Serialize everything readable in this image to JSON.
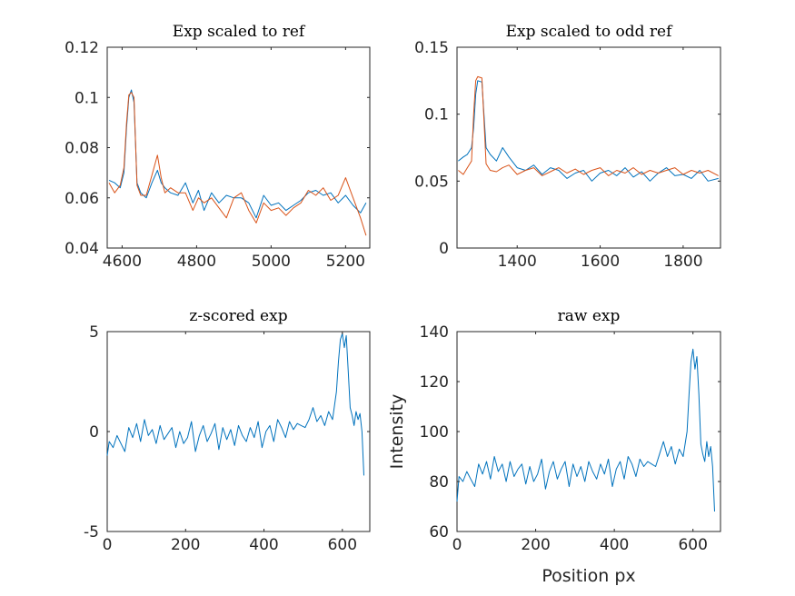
{
  "colors": {
    "series1": "#0072BD",
    "series2": "#D95319",
    "axes": "#262626"
  },
  "chart_data": [
    {
      "type": "line",
      "title": "Exp scaled to ref",
      "xlabel": "",
      "ylabel": "",
      "xlim": [
        4560,
        5265
      ],
      "ylim": [
        0.04,
        0.12
      ],
      "xticks": [
        4600,
        4800,
        5000,
        5200
      ],
      "xtick_labels": [
        "4600",
        "4800",
        "5000",
        "5200"
      ],
      "yticks": [
        0.04,
        0.06,
        0.08,
        0.1,
        0.12
      ],
      "ytick_labels": [
        "0.04",
        "0.06",
        "0.08",
        "0.1",
        "0.12"
      ],
      "grid": false,
      "series": [
        {
          "color": "#0072BD",
          "x": [
            4565,
            4580,
            4595,
            4605,
            4612,
            4618,
            4625,
            4632,
            4640,
            4650,
            4665,
            4680,
            4695,
            4705,
            4715,
            4730,
            4750,
            4770,
            4790,
            4805,
            4820,
            4840,
            4860,
            4880,
            4900,
            4920,
            4940,
            4960,
            4980,
            5000,
            5020,
            5040,
            5060,
            5080,
            5100,
            5120,
            5140,
            5160,
            5180,
            5200,
            5220,
            5240,
            5255
          ],
          "y": [
            0.067,
            0.066,
            0.064,
            0.07,
            0.088,
            0.1,
            0.103,
            0.098,
            0.066,
            0.062,
            0.06,
            0.066,
            0.071,
            0.066,
            0.064,
            0.062,
            0.061,
            0.066,
            0.058,
            0.063,
            0.055,
            0.062,
            0.058,
            0.061,
            0.06,
            0.06,
            0.058,
            0.052,
            0.061,
            0.057,
            0.058,
            0.055,
            0.057,
            0.059,
            0.062,
            0.063,
            0.061,
            0.062,
            0.058,
            0.061,
            0.057,
            0.054,
            0.058
          ]
        },
        {
          "color": "#D95319",
          "x": [
            4565,
            4580,
            4595,
            4605,
            4612,
            4618,
            4625,
            4632,
            4640,
            4650,
            4665,
            4680,
            4695,
            4705,
            4715,
            4730,
            4750,
            4770,
            4790,
            4805,
            4820,
            4840,
            4860,
            4880,
            4900,
            4920,
            4940,
            4960,
            4980,
            5000,
            5020,
            5040,
            5060,
            5080,
            5100,
            5120,
            5140,
            5160,
            5180,
            5200,
            5220,
            5240,
            5255
          ],
          "y": [
            0.066,
            0.062,
            0.065,
            0.072,
            0.09,
            0.101,
            0.102,
            0.1,
            0.065,
            0.061,
            0.061,
            0.069,
            0.077,
            0.068,
            0.062,
            0.064,
            0.062,
            0.062,
            0.055,
            0.06,
            0.058,
            0.06,
            0.056,
            0.052,
            0.06,
            0.062,
            0.055,
            0.05,
            0.058,
            0.055,
            0.056,
            0.053,
            0.056,
            0.058,
            0.063,
            0.061,
            0.064,
            0.059,
            0.061,
            0.068,
            0.06,
            0.052,
            0.045
          ]
        }
      ]
    },
    {
      "type": "line",
      "title": "Exp scaled to odd ref",
      "xlabel": "",
      "ylabel": "",
      "xlim": [
        1255,
        1890
      ],
      "ylim": [
        0,
        0.15
      ],
      "xticks": [
        1400,
        1600,
        1800
      ],
      "xtick_labels": [
        "1400",
        "1600",
        "1800"
      ],
      "yticks": [
        0,
        0.05,
        0.1,
        0.15
      ],
      "ytick_labels": [
        "0",
        "0.05",
        "0.1",
        "0.15"
      ],
      "grid": false,
      "series": [
        {
          "color": "#0072BD",
          "x": [
            1258,
            1270,
            1280,
            1290,
            1295,
            1300,
            1305,
            1315,
            1325,
            1335,
            1350,
            1365,
            1380,
            1400,
            1420,
            1440,
            1460,
            1480,
            1500,
            1520,
            1540,
            1560,
            1580,
            1600,
            1620,
            1640,
            1660,
            1680,
            1700,
            1720,
            1740,
            1760,
            1780,
            1800,
            1820,
            1840,
            1860,
            1885
          ],
          "y": [
            0.065,
            0.068,
            0.07,
            0.075,
            0.09,
            0.115,
            0.125,
            0.124,
            0.075,
            0.07,
            0.065,
            0.075,
            0.068,
            0.06,
            0.058,
            0.062,
            0.055,
            0.06,
            0.058,
            0.052,
            0.056,
            0.058,
            0.05,
            0.056,
            0.058,
            0.054,
            0.06,
            0.053,
            0.057,
            0.05,
            0.056,
            0.06,
            0.054,
            0.055,
            0.052,
            0.058,
            0.05,
            0.052
          ]
        },
        {
          "color": "#D95319",
          "x": [
            1258,
            1270,
            1280,
            1290,
            1295,
            1300,
            1305,
            1315,
            1325,
            1335,
            1350,
            1365,
            1380,
            1400,
            1420,
            1440,
            1460,
            1480,
            1500,
            1520,
            1540,
            1560,
            1580,
            1600,
            1620,
            1640,
            1660,
            1680,
            1700,
            1720,
            1740,
            1760,
            1780,
            1800,
            1820,
            1840,
            1860,
            1885
          ],
          "y": [
            0.058,
            0.055,
            0.06,
            0.065,
            0.1,
            0.125,
            0.128,
            0.127,
            0.063,
            0.058,
            0.057,
            0.06,
            0.062,
            0.055,
            0.058,
            0.06,
            0.054,
            0.057,
            0.06,
            0.056,
            0.059,
            0.055,
            0.058,
            0.06,
            0.054,
            0.058,
            0.056,
            0.06,
            0.055,
            0.058,
            0.056,
            0.058,
            0.06,
            0.055,
            0.058,
            0.056,
            0.058,
            0.054
          ]
        }
      ]
    },
    {
      "type": "line",
      "title": "z-scored exp",
      "xlabel": "",
      "ylabel": "",
      "xlim": [
        0,
        670
      ],
      "ylim": [
        -5,
        5
      ],
      "xticks": [
        0,
        200,
        400,
        600
      ],
      "xtick_labels": [
        "0",
        "200",
        "400",
        "600"
      ],
      "yticks": [
        -5,
        0,
        5
      ],
      "ytick_labels": [
        "-5",
        "0",
        "5"
      ],
      "grid": false,
      "series": [
        {
          "color": "#0072BD",
          "x": [
            0,
            5,
            15,
            25,
            35,
            45,
            55,
            65,
            75,
            85,
            95,
            105,
            115,
            125,
            135,
            145,
            155,
            165,
            175,
            185,
            195,
            205,
            215,
            225,
            235,
            245,
            255,
            265,
            275,
            285,
            295,
            305,
            315,
            325,
            335,
            345,
            355,
            365,
            375,
            385,
            395,
            405,
            415,
            425,
            435,
            445,
            455,
            465,
            475,
            485,
            495,
            505,
            515,
            525,
            535,
            545,
            555,
            565,
            575,
            585,
            590,
            595,
            600,
            605,
            610,
            615,
            620,
            625,
            630,
            635,
            640,
            645,
            650,
            655
          ],
          "y": [
            -1.2,
            -0.5,
            -0.8,
            -0.2,
            -0.6,
            -1.0,
            0.2,
            -0.3,
            0.4,
            -0.5,
            0.6,
            -0.2,
            0.1,
            -0.6,
            0.3,
            -0.4,
            -0.1,
            0.2,
            -0.8,
            0.0,
            -0.6,
            -0.3,
            0.5,
            -1.0,
            -0.2,
            0.3,
            -0.5,
            -0.1,
            0.4,
            -0.9,
            0.2,
            -0.4,
            0.1,
            -0.7,
            0.3,
            -0.2,
            -0.5,
            0.2,
            -0.3,
            0.5,
            -0.8,
            0.0,
            0.3,
            -0.5,
            0.6,
            0.2,
            -0.3,
            0.5,
            0.1,
            0.4,
            0.3,
            0.2,
            0.6,
            1.2,
            0.5,
            0.8,
            0.3,
            1.0,
            0.6,
            2.0,
            3.5,
            4.6,
            4.9,
            4.2,
            4.8,
            3.0,
            1.2,
            0.8,
            0.3,
            1.0,
            0.6,
            0.9,
            0.0,
            -2.2
          ]
        }
      ]
    },
    {
      "type": "line",
      "title": "raw exp",
      "xlabel": "Position px",
      "ylabel": "Intensity",
      "xlim": [
        0,
        670
      ],
      "ylim": [
        60,
        140
      ],
      "xticks": [
        0,
        200,
        400,
        600
      ],
      "xtick_labels": [
        "0",
        "200",
        "400",
        "600"
      ],
      "yticks": [
        60,
        80,
        100,
        120,
        140
      ],
      "ytick_labels": [
        "60",
        "80",
        "100",
        "120",
        "140"
      ],
      "grid": false,
      "series": [
        {
          "color": "#0072BD",
          "x": [
            0,
            5,
            15,
            25,
            35,
            45,
            55,
            65,
            75,
            85,
            95,
            105,
            115,
            125,
            135,
            145,
            155,
            165,
            175,
            185,
            195,
            205,
            215,
            225,
            235,
            245,
            255,
            265,
            275,
            285,
            295,
            305,
            315,
            325,
            335,
            345,
            355,
            365,
            375,
            385,
            395,
            405,
            415,
            425,
            435,
            445,
            455,
            465,
            475,
            485,
            495,
            505,
            515,
            525,
            535,
            545,
            555,
            565,
            575,
            585,
            590,
            595,
            600,
            605,
            610,
            615,
            620,
            625,
            630,
            635,
            640,
            645,
            650,
            655
          ],
          "y": [
            72,
            82,
            80,
            84,
            81,
            78,
            87,
            83,
            88,
            81,
            90,
            84,
            87,
            80,
            88,
            82,
            85,
            87,
            79,
            86,
            80,
            83,
            89,
            77,
            84,
            88,
            81,
            85,
            88,
            78,
            87,
            82,
            86,
            80,
            88,
            84,
            81,
            87,
            83,
            89,
            78,
            85,
            88,
            81,
            90,
            87,
            82,
            89,
            86,
            88,
            87,
            86,
            91,
            96,
            90,
            94,
            87,
            93,
            90,
            100,
            115,
            128,
            133,
            125,
            130,
            115,
            95,
            91,
            88,
            96,
            90,
            94,
            86,
            68
          ]
        }
      ]
    }
  ]
}
